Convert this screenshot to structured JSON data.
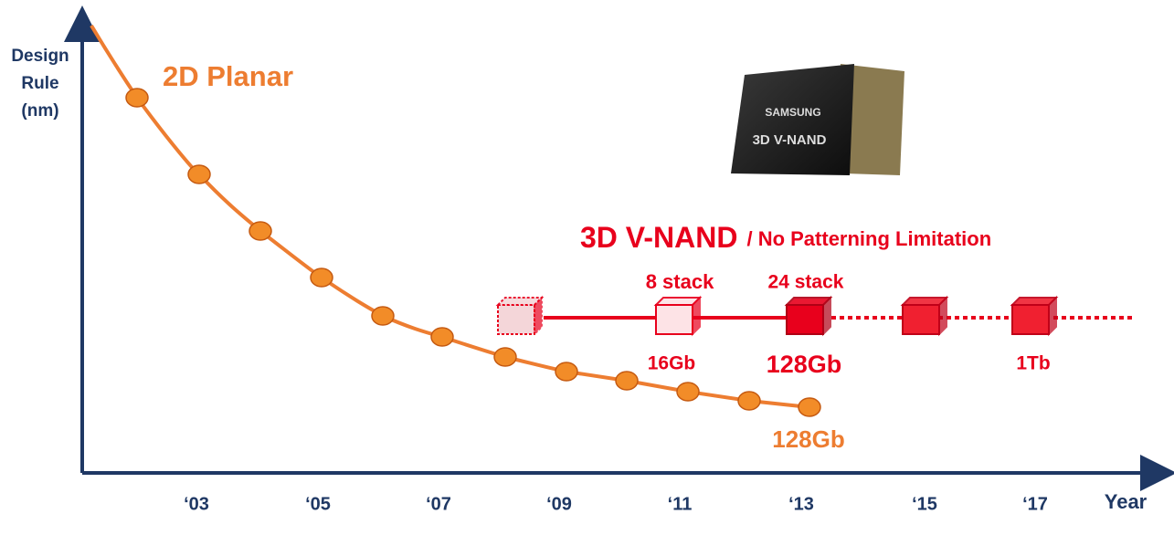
{
  "axes": {
    "y_label": [
      "Design",
      "Rule",
      "(nm)"
    ],
    "x_label": "Year",
    "x_ticks": [
      "‘03",
      "‘05",
      "‘07",
      "‘09",
      "‘11",
      "‘13",
      "‘15",
      "‘17"
    ]
  },
  "planar": {
    "label": "2D Planar",
    "capacity": "128Gb"
  },
  "chip": {
    "brand": "SAMSUNG",
    "product": "3D V-NAND"
  },
  "vnand": {
    "title": "3D V-NAND",
    "subtitle": "/ No Patterning Limitation",
    "stages": [
      {
        "stack": "8 stack",
        "capacity": "16Gb"
      },
      {
        "stack": "24 stack",
        "capacity": "128Gb"
      },
      {
        "capacity": "1Tb"
      }
    ]
  }
}
